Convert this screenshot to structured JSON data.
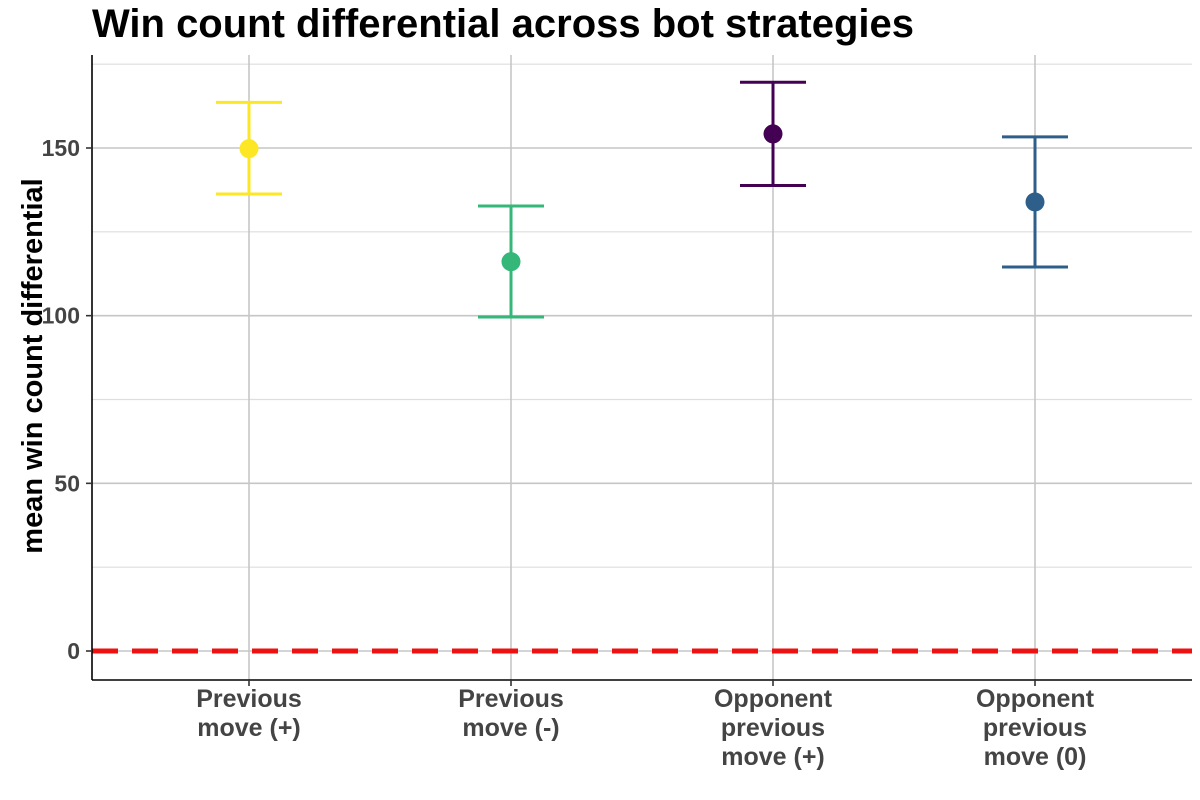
{
  "chart_data": {
    "type": "scatter",
    "title": "Win count differential across bot strategies",
    "xlabel": "",
    "ylabel": "mean win count differential",
    "ylim": [
      -8,
      177
    ],
    "yticks": [
      0,
      50,
      100,
      150
    ],
    "grid": true,
    "reference_line": {
      "y": 0,
      "color": "#ee1111",
      "style": "dashed"
    },
    "categories": [
      [
        "Previous",
        "move (+)"
      ],
      [
        "Previous",
        "move (-)"
      ],
      [
        "Opponent",
        "previous",
        "move (+)"
      ],
      [
        "Opponent",
        "previous",
        "move (0)"
      ]
    ],
    "points": [
      {
        "mean": 149.8,
        "lower": 136.3,
        "upper": 163.6,
        "color": "#fde725"
      },
      {
        "mean": 116.1,
        "lower": 99.6,
        "upper": 132.7,
        "color": "#35b779"
      },
      {
        "mean": 154.2,
        "lower": 138.8,
        "upper": 169.6,
        "color": "#440154"
      },
      {
        "mean": 133.9,
        "lower": 114.5,
        "upper": 153.3,
        "color": "#2d5f8a"
      }
    ]
  }
}
